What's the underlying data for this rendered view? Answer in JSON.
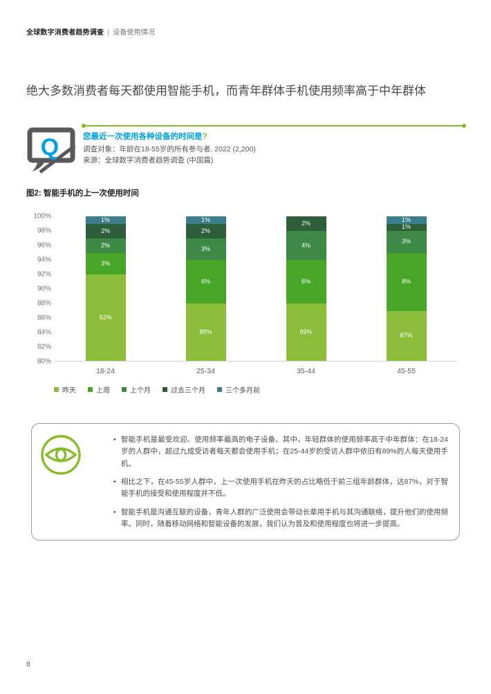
{
  "header": {
    "brand": "全球数字消费者趋势调查",
    "divider": "|",
    "section": "设备使用情况"
  },
  "title": "绝大多数消费者每天都使用智能手机，而青年群体手机使用频率高于中年群体",
  "question": {
    "label": "您最近一次使用各种设备的时间是",
    "mark": "?",
    "audience": "调查对象：年龄在18-55岁的所有参与者, 2022 (2,200)",
    "source": "来源：全球数字消费者趋势调查 (中国篇)"
  },
  "figure": {
    "title": "图2: 智能手机的上一次使用时间"
  },
  "insights": [
    "智能手机是最受欢迎、使用频率最高的电子设备。其中，年轻群体的使用频率高于中年群体：在18-24岁的人群中，超过九成受访者每天都会使用手机；在25-44岁的受访人群中依旧有89%的人每天使用手机。",
    "相比之下，在45-55岁人群中，上一次使用手机在昨天的占比略低于前三组年龄群体，达87%，对于智能手机的接受和使用程度并不低。",
    "智能手机是沟通互联的设备，青年人群的广泛使用会带动长辈用手机与其沟通联络，提升他们的使用频率。同时，随着移动网络和智能设备的发展，我们认为普及和使用程度也将进一步提高。"
  ],
  "page_number": "8",
  "colors": {
    "accent_green": "#86bc25",
    "accent_cyan": "#00a1de",
    "icon_gray": "#58595b"
  },
  "chart_data": {
    "type": "bar",
    "stacked": true,
    "percent": true,
    "title": "图2: 智能手机的上一次使用时间",
    "categories": [
      "18-24",
      "25-34",
      "35-44",
      "45-55"
    ],
    "series": [
      {
        "name": "昨天",
        "color": "#8cbd3b",
        "values": [
          92,
          89,
          89,
          87
        ]
      },
      {
        "name": "上周",
        "color": "#47a625",
        "values": [
          3,
          6,
          6,
          8
        ]
      },
      {
        "name": "上个月",
        "color": "#3e8945",
        "values": [
          2,
          3,
          4,
          3
        ]
      },
      {
        "name": "过去三个月",
        "color": "#2c5e39",
        "values": [
          2,
          2,
          2,
          1
        ]
      },
      {
        "name": "三个多月前",
        "color": "#3a7e8e",
        "values": [
          1,
          1,
          0,
          1
        ]
      }
    ],
    "ylim": [
      80,
      100
    ],
    "ytick_step": 2,
    "value_suffix": "%",
    "grid": false,
    "legend_position": "bottom"
  }
}
